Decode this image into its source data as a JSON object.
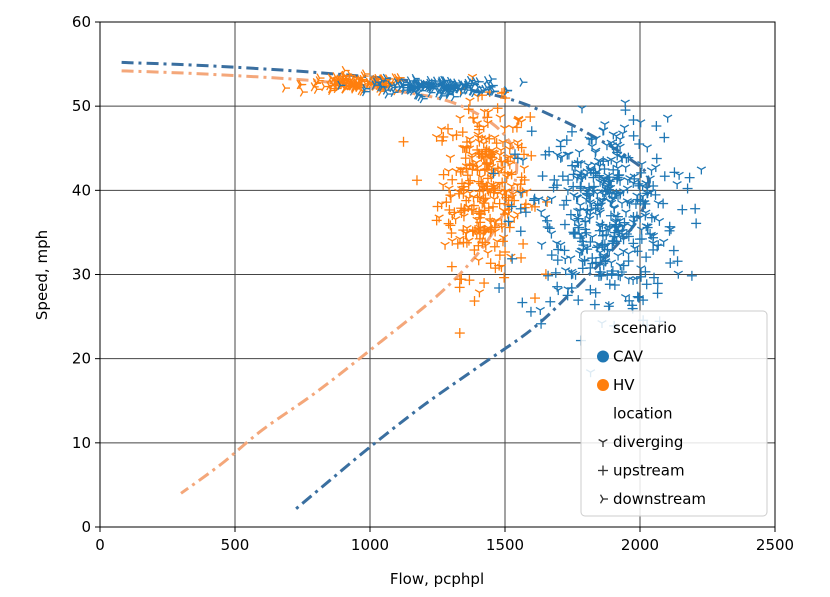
{
  "chart_data": {
    "type": "scatter",
    "title": "",
    "xlabel": "Flow, pcphpl",
    "ylabel": "Speed, mph",
    "xlim": [
      0,
      2500
    ],
    "ylim": [
      0,
      60
    ],
    "x_ticks": [
      "0",
      "500",
      "1000",
      "1500",
      "2000",
      "2500"
    ],
    "y_ticks": [
      "0",
      "10",
      "20",
      "30",
      "40",
      "50",
      "60"
    ],
    "grid": true,
    "legend": {
      "placement": "bottom-right",
      "sections": [
        {
          "title": "scenario",
          "entries": [
            {
              "label": "CAV",
              "marker": "circle",
              "color": "#1f77b4"
            },
            {
              "label": "HV",
              "marker": "circle",
              "color": "#ff7f0e"
            }
          ]
        },
        {
          "title": "location",
          "entries": [
            {
              "label": "diverging",
              "marker": "tri_down",
              "color": "#333333"
            },
            {
              "label": "upstream",
              "marker": "plus",
              "color": "#333333"
            },
            {
              "label": "downstream",
              "marker": "tri_right",
              "color": "#333333"
            }
          ]
        }
      ]
    },
    "colors": {
      "CAV": "#1f77b4",
      "HV": "#ff7f0e",
      "CAV_curve": "#3a6fa0",
      "HV_curve": "#f4a77a"
    },
    "fitted_curves": [
      {
        "scenario": "CAV",
        "style": "dash-dot",
        "points": [
          [
            80,
            55.2
          ],
          [
            400,
            54.8
          ],
          [
            800,
            54.0
          ],
          [
            1200,
            52.8
          ],
          [
            1500,
            51.0
          ],
          [
            1700,
            48.5
          ],
          [
            1850,
            46.0
          ],
          [
            1950,
            44.0
          ],
          [
            2030,
            41.5
          ],
          [
            2000,
            37.0
          ],
          [
            1900,
            33.0
          ],
          [
            1750,
            28.0
          ],
          [
            1600,
            23.5
          ],
          [
            1400,
            19.0
          ],
          [
            1200,
            14.5
          ],
          [
            1000,
            9.5
          ],
          [
            850,
            5.5
          ],
          [
            720,
            2.0
          ]
        ]
      },
      {
        "scenario": "HV",
        "style": "dash-dot",
        "points": [
          [
            80,
            54.2
          ],
          [
            400,
            53.8
          ],
          [
            800,
            53.0
          ],
          [
            1100,
            51.8
          ],
          [
            1300,
            50.5
          ],
          [
            1450,
            48.0
          ],
          [
            1530,
            45.0
          ],
          [
            1540,
            41.5
          ],
          [
            1490,
            37.0
          ],
          [
            1400,
            32.5
          ],
          [
            1250,
            27.5
          ],
          [
            1000,
            21.0
          ],
          [
            800,
            16.0
          ],
          [
            600,
            11.5
          ],
          [
            450,
            7.5
          ],
          [
            300,
            4.0
          ]
        ]
      }
    ],
    "series": [
      {
        "scenario": "CAV",
        "location": "diverging",
        "cluster": {
          "cx": 1880,
          "cy": 38.5,
          "sx": 110,
          "sy": 5.0,
          "n": 250
        }
      },
      {
        "scenario": "CAV",
        "location": "upstream",
        "cluster": {
          "cx": 1850,
          "cy": 35.5,
          "sx": 150,
          "sy": 6.0,
          "n": 200
        }
      },
      {
        "scenario": "CAV",
        "location": "downstream",
        "cluster": {
          "cx": 1250,
          "cy": 52.3,
          "sx": 120,
          "sy": 0.45,
          "n": 150
        }
      },
      {
        "scenario": "HV",
        "location": "diverging",
        "cluster": {
          "cx": 1430,
          "cy": 41.0,
          "sx": 80,
          "sy": 5.0,
          "n": 160
        }
      },
      {
        "scenario": "HV",
        "location": "upstream",
        "cluster": {
          "cx": 1420,
          "cy": 40.0,
          "sx": 85,
          "sy": 5.0,
          "n": 160
        }
      },
      {
        "scenario": "HV",
        "location": "downstream",
        "cluster": {
          "cx": 950,
          "cy": 52.6,
          "sx": 100,
          "sy": 0.5,
          "n": 120
        }
      }
    ]
  }
}
